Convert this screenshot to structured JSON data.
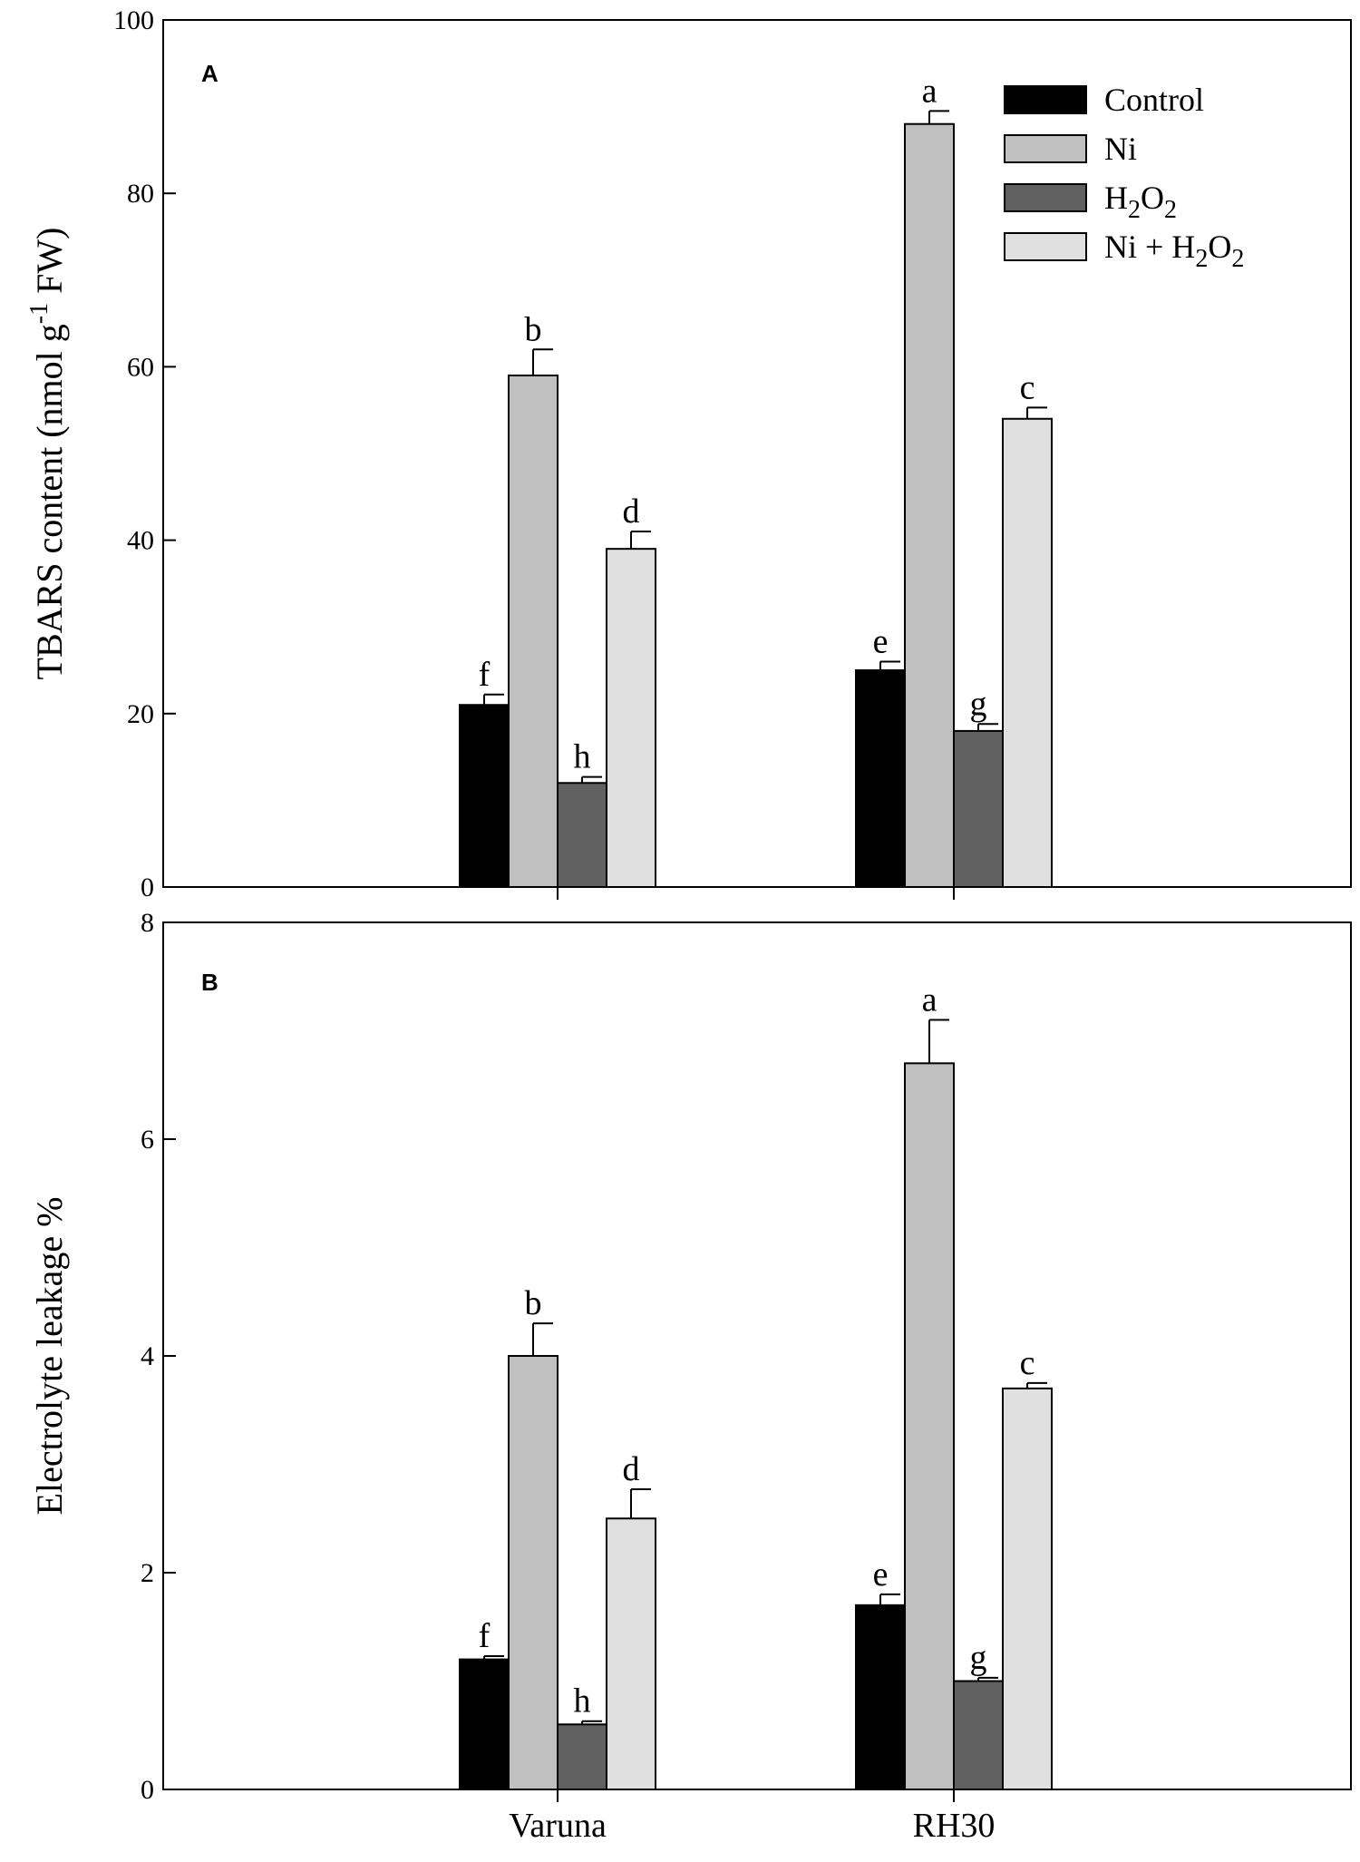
{
  "chart_data": [
    {
      "type": "bar",
      "panel": "A",
      "ylabel_main": "TBARS content (nmol g",
      "ylabel_sup": "-1",
      "ylabel_tail": " FW)",
      "ylim": [
        0,
        100
      ],
      "yticks": [
        0,
        20,
        40,
        60,
        80,
        100
      ],
      "categories": [
        "Varuna",
        "RH30"
      ],
      "show_xlabels": false,
      "series": [
        {
          "name": "Control",
          "values": [
            21,
            25
          ],
          "errors": [
            1.2,
            1.0
          ],
          "letters": [
            "f",
            "e"
          ]
        },
        {
          "name": "Ni",
          "values": [
            59,
            88
          ],
          "errors": [
            3.0,
            1.5
          ],
          "letters": [
            "b",
            "a"
          ]
        },
        {
          "name": "H2O2",
          "values": [
            12,
            18
          ],
          "errors": [
            0.7,
            0.8
          ],
          "letters": [
            "h",
            "g"
          ]
        },
        {
          "name": "Ni + H2O2",
          "values": [
            39,
            54
          ],
          "errors": [
            2.0,
            1.3
          ],
          "letters": [
            "d",
            "c"
          ]
        }
      ],
      "legend": {
        "position": "top-right",
        "entries": [
          {
            "label": "Control",
            "color_key": "Control"
          },
          {
            "label": "Ni",
            "color_key": "Ni"
          },
          {
            "label_base": "H",
            "sub1": "2",
            "mid": "O",
            "sub2": "2",
            "color_key": "H2O2"
          },
          {
            "label_base": "Ni + H",
            "sub1": "2",
            "mid": "O",
            "sub2": "2",
            "color_key": "Ni + H2O2"
          }
        ]
      }
    },
    {
      "type": "bar",
      "panel": "B",
      "ylabel_main": "Electrolyte leakage %",
      "ylim": [
        0,
        8
      ],
      "yticks": [
        0,
        2,
        4,
        6,
        8
      ],
      "categories": [
        "Varuna",
        "RH30"
      ],
      "show_xlabels": true,
      "series": [
        {
          "name": "Control",
          "values": [
            1.2,
            1.7
          ],
          "errors": [
            0.03,
            0.1
          ],
          "letters": [
            "f",
            "e"
          ]
        },
        {
          "name": "Ni",
          "values": [
            4.0,
            6.7
          ],
          "errors": [
            0.3,
            0.4
          ],
          "letters": [
            "b",
            "a"
          ]
        },
        {
          "name": "H2O2",
          "values": [
            0.6,
            1.0
          ],
          "errors": [
            0.03,
            0.03
          ],
          "letters": [
            "h",
            "g"
          ]
        },
        {
          "name": "Ni + H2O2",
          "values": [
            2.5,
            3.7
          ],
          "errors": [
            0.27,
            0.05
          ],
          "letters": [
            "d",
            "c"
          ]
        }
      ]
    }
  ],
  "colors": {
    "Control": "#000000",
    "Ni": "#c0c0c0",
    "H2O2": "#606060",
    "Ni + H2O2": "#e0e0e0"
  }
}
